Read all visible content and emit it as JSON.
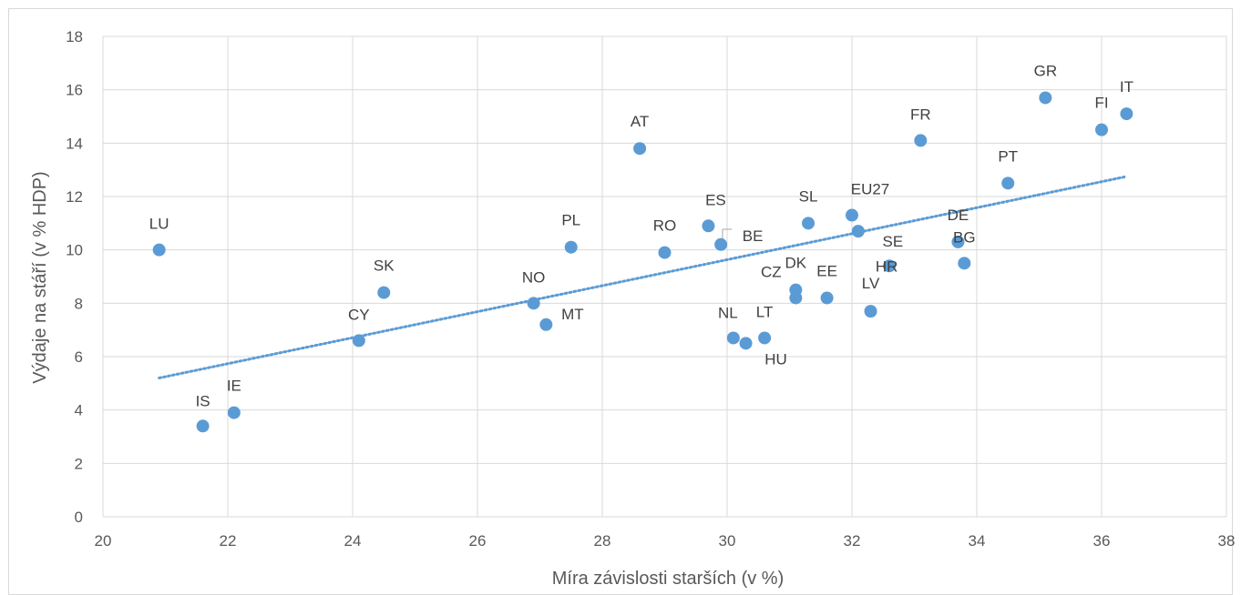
{
  "chart_data": {
    "type": "scatter",
    "title": "",
    "xlabel": "Míra závislosti starších (v %)",
    "ylabel": "Výdaje na stáří (v % HDP)",
    "xlim": [
      20,
      38
    ],
    "ylim": [
      0,
      18
    ],
    "x_ticks": [
      20,
      22,
      24,
      26,
      28,
      30,
      32,
      34,
      36,
      38
    ],
    "y_ticks": [
      0,
      2,
      4,
      6,
      8,
      10,
      12,
      14,
      16,
      18
    ],
    "grid": true,
    "legend": "none",
    "point_color": "#5b9bd5",
    "trendline": {
      "style": "dotted",
      "color": "#5b9bd5",
      "from": [
        20.9,
        5.2
      ],
      "to": [
        36.4,
        12.75
      ]
    },
    "points": [
      {
        "label": "LU",
        "x": 20.9,
        "y": 10.0
      },
      {
        "label": "IS",
        "x": 21.6,
        "y": 3.4
      },
      {
        "label": "IE",
        "x": 22.1,
        "y": 3.9
      },
      {
        "label": "CY",
        "x": 24.1,
        "y": 6.6
      },
      {
        "label": "SK",
        "x": 24.5,
        "y": 8.4
      },
      {
        "label": "NO",
        "x": 26.9,
        "y": 8.0
      },
      {
        "label": "MT",
        "x": 27.1,
        "y": 7.2
      },
      {
        "label": "PL",
        "x": 27.5,
        "y": 10.1
      },
      {
        "label": "AT",
        "x": 28.6,
        "y": 13.8
      },
      {
        "label": "RO",
        "x": 29.0,
        "y": 9.9
      },
      {
        "label": "ES",
        "x": 29.7,
        "y": 10.9
      },
      {
        "label": "BE",
        "x": 29.9,
        "y": 10.2
      },
      {
        "label": "NL",
        "x": 30.1,
        "y": 6.7
      },
      {
        "label": "HU",
        "x": 30.3,
        "y": 6.5
      },
      {
        "label": "LT",
        "x": 30.6,
        "y": 6.7
      },
      {
        "label": "DK",
        "x": 31.1,
        "y": 8.5
      },
      {
        "label": "CZ",
        "x": 31.1,
        "y": 8.2
      },
      {
        "label": "SL",
        "x": 31.3,
        "y": 11.0
      },
      {
        "label": "EE",
        "x": 31.6,
        "y": 8.2
      },
      {
        "label": "EU27",
        "x": 32.0,
        "y": 11.3
      },
      {
        "label": "SE",
        "x": 32.1,
        "y": 10.7
      },
      {
        "label": "LV",
        "x": 32.3,
        "y": 7.7
      },
      {
        "label": "HR",
        "x": 32.6,
        "y": 9.4
      },
      {
        "label": "FR",
        "x": 33.1,
        "y": 14.1
      },
      {
        "label": "DE",
        "x": 33.7,
        "y": 10.3
      },
      {
        "label": "BG",
        "x": 33.8,
        "y": 9.5
      },
      {
        "label": "PT",
        "x": 34.5,
        "y": 12.5
      },
      {
        "label": "GR",
        "x": 35.1,
        "y": 15.7
      },
      {
        "label": "FI",
        "x": 36.0,
        "y": 14.5
      },
      {
        "label": "IT",
        "x": 36.4,
        "y": 15.1
      }
    ]
  }
}
